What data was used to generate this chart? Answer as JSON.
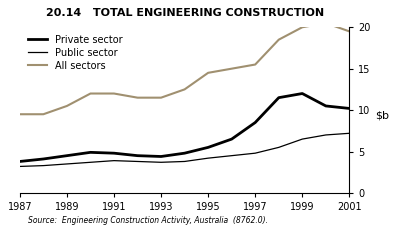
{
  "title": "20.14   TOTAL ENGINEERING CONSTRUCTION",
  "source": "Source:  Engineering Construction Activity, Australia  (8762.0).",
  "years": [
    1987,
    1988,
    1989,
    1990,
    1991,
    1992,
    1993,
    1994,
    1995,
    1996,
    1997,
    1998,
    1999,
    2000,
    2001
  ],
  "private_sector": [
    3.8,
    4.1,
    4.5,
    4.9,
    4.8,
    4.5,
    4.4,
    4.8,
    5.5,
    6.5,
    8.5,
    11.5,
    12.0,
    10.5,
    10.2
  ],
  "public_sector": [
    3.2,
    3.3,
    3.5,
    3.7,
    3.9,
    3.8,
    3.7,
    3.8,
    4.2,
    4.5,
    4.8,
    5.5,
    6.5,
    7.0,
    7.2
  ],
  "all_sectors": [
    9.5,
    9.5,
    10.5,
    12.0,
    12.0,
    11.5,
    11.5,
    12.5,
    14.5,
    15.0,
    15.5,
    18.5,
    20.0,
    20.5,
    19.5
  ],
  "private_color": "#000000",
  "public_color": "#000000",
  "all_color": "#a09070",
  "private_lw": 2.0,
  "public_lw": 0.9,
  "all_lw": 1.5,
  "ylim": [
    0,
    20
  ],
  "yticks": [
    0,
    5,
    10,
    15,
    20
  ],
  "xticks": [
    1987,
    1989,
    1991,
    1993,
    1995,
    1997,
    1999,
    2001
  ],
  "legend_labels": [
    "Private sector",
    "Public sector",
    "All sectors"
  ],
  "figsize": [
    3.97,
    2.27
  ],
  "dpi": 100
}
